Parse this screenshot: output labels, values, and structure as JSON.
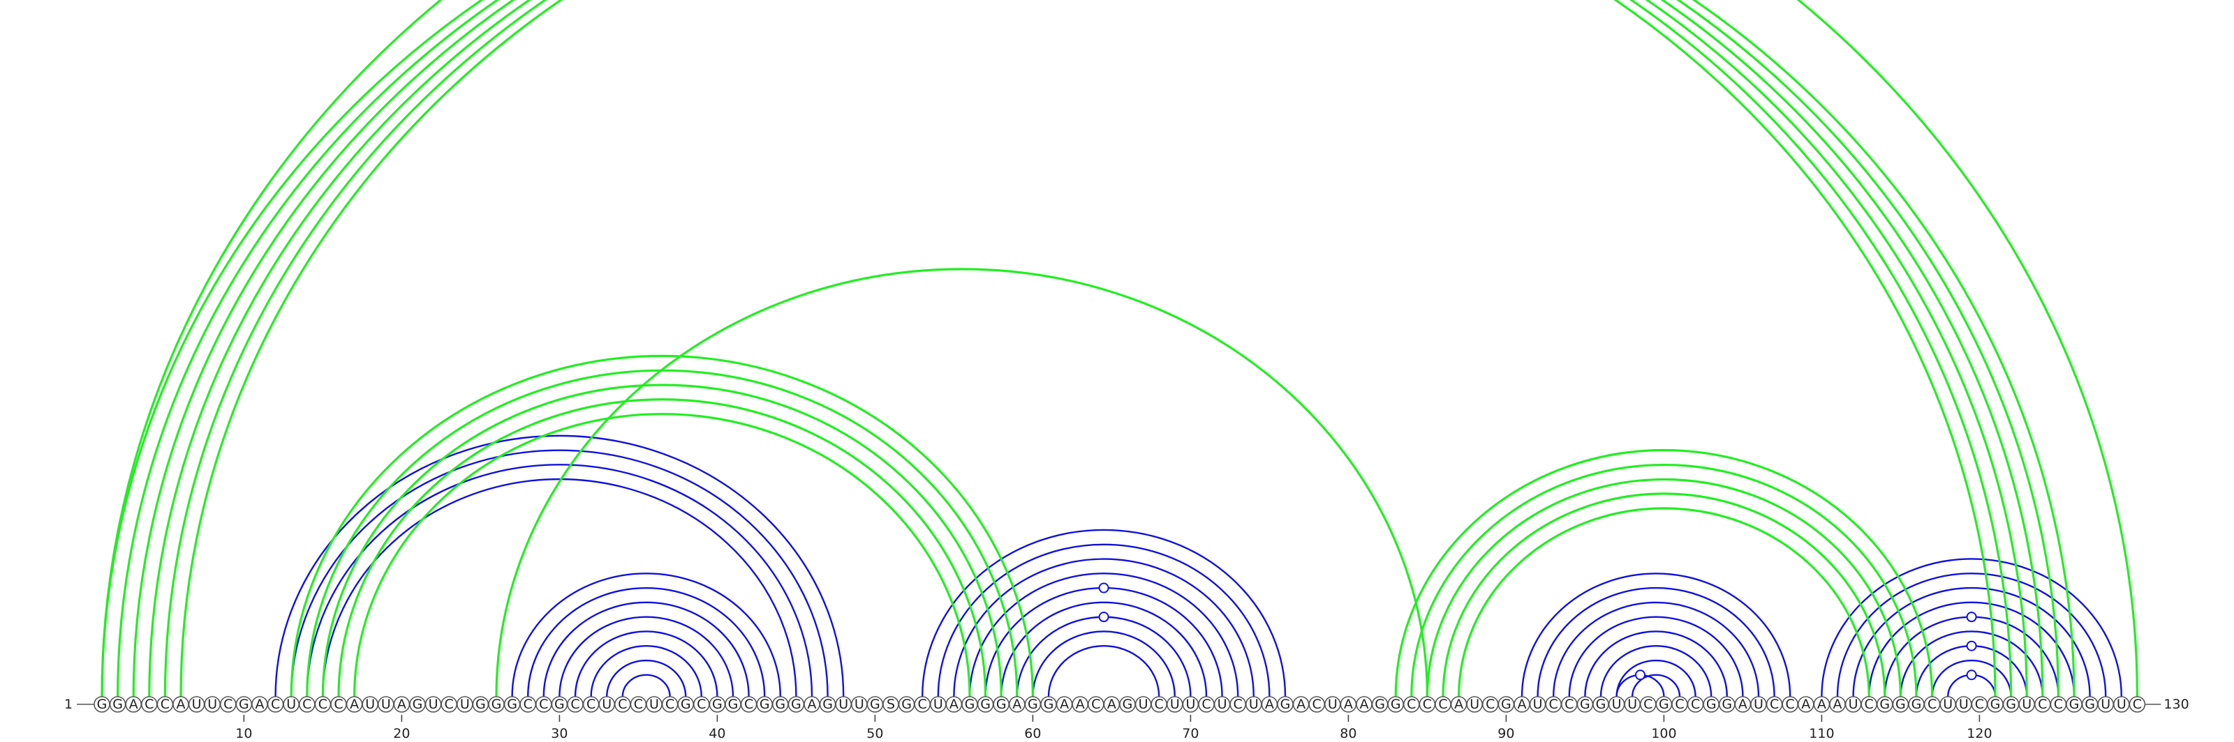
{
  "sequence": "GGACCAUUCGACUCCCAUUAGUCUGGGCCGCCUCCUCGCGGCGGGAGUUGSGCUAGGGAGGAACAGUCUUCUCUAGACUAAGGCCCAUCGAUCCGGUUCGCCGGAUCCAAAUCGGGCUUCGGUCCGGUUC",
  "start_label": "1",
  "end_label": "130",
  "ticks": [
    10,
    20,
    30,
    40,
    50,
    60,
    70,
    80,
    90,
    100,
    110,
    120
  ],
  "colors": {
    "blue": "#1111dd",
    "green": "#22ee22"
  },
  "arcs": [
    {
      "i": 12,
      "j": 48,
      "color": "blue"
    },
    {
      "i": 13,
      "j": 47,
      "color": "blue"
    },
    {
      "i": 14,
      "j": 46,
      "color": "blue"
    },
    {
      "i": 15,
      "j": 45,
      "color": "blue"
    },
    {
      "i": 27,
      "j": 44,
      "color": "blue"
    },
    {
      "i": 28,
      "j": 43,
      "color": "blue"
    },
    {
      "i": 29,
      "j": 42,
      "color": "blue"
    },
    {
      "i": 30,
      "j": 41,
      "color": "blue"
    },
    {
      "i": 31,
      "j": 40,
      "color": "blue"
    },
    {
      "i": 32,
      "j": 39,
      "color": "blue"
    },
    {
      "i": 33,
      "j": 38,
      "color": "blue"
    },
    {
      "i": 34,
      "j": 37,
      "color": "blue"
    },
    {
      "i": 53,
      "j": 76,
      "color": "blue"
    },
    {
      "i": 54,
      "j": 75,
      "color": "blue"
    },
    {
      "i": 55,
      "j": 74,
      "color": "blue"
    },
    {
      "i": 56,
      "j": 73,
      "color": "blue"
    },
    {
      "i": 57,
      "j": 72,
      "color": "blue",
      "noncanonical": true
    },
    {
      "i": 58,
      "j": 71,
      "color": "blue"
    },
    {
      "i": 59,
      "j": 70,
      "color": "blue",
      "noncanonical": true
    },
    {
      "i": 60,
      "j": 69,
      "color": "blue"
    },
    {
      "i": 61,
      "j": 68,
      "color": "blue"
    },
    {
      "i": 91,
      "j": 108,
      "color": "blue"
    },
    {
      "i": 92,
      "j": 107,
      "color": "blue"
    },
    {
      "i": 93,
      "j": 106,
      "color": "blue"
    },
    {
      "i": 94,
      "j": 105,
      "color": "blue"
    },
    {
      "i": 95,
      "j": 104,
      "color": "blue"
    },
    {
      "i": 96,
      "j": 103,
      "color": "blue"
    },
    {
      "i": 97,
      "j": 102,
      "color": "blue"
    },
    {
      "i": 98,
      "j": 101,
      "color": "blue"
    },
    {
      "i": 97,
      "j": 100,
      "color": "blue",
      "noncanonical": true
    },
    {
      "i": 110,
      "j": 129,
      "color": "blue"
    },
    {
      "i": 111,
      "j": 128,
      "color": "blue"
    },
    {
      "i": 112,
      "j": 127,
      "color": "blue"
    },
    {
      "i": 113,
      "j": 126,
      "color": "blue"
    },
    {
      "i": 114,
      "j": 125,
      "color": "blue",
      "noncanonical": true
    },
    {
      "i": 115,
      "j": 124,
      "color": "blue"
    },
    {
      "i": 116,
      "j": 123,
      "color": "blue",
      "noncanonical": true
    },
    {
      "i": 117,
      "j": 122,
      "color": "blue"
    },
    {
      "i": 118,
      "j": 121,
      "color": "blue",
      "noncanonical": true
    },
    {
      "i": 1,
      "j": 121,
      "color": "green"
    },
    {
      "i": 2,
      "j": 122,
      "color": "green"
    },
    {
      "i": 3,
      "j": 123,
      "color": "green"
    },
    {
      "i": 4,
      "j": 124,
      "color": "green"
    },
    {
      "i": 5,
      "j": 125,
      "color": "green"
    },
    {
      "i": 6,
      "j": 126,
      "color": "green"
    },
    {
      "i": 1,
      "j": 130,
      "color": "green",
      "noncanonical": true
    },
    {
      "i": 13,
      "j": 60,
      "color": "green"
    },
    {
      "i": 14,
      "j": 59,
      "color": "green"
    },
    {
      "i": 15,
      "j": 58,
      "color": "green"
    },
    {
      "i": 16,
      "j": 57,
      "color": "green"
    },
    {
      "i": 17,
      "j": 56,
      "color": "green"
    },
    {
      "i": 26,
      "j": 85,
      "color": "green"
    },
    {
      "i": 83,
      "j": 117,
      "color": "green"
    },
    {
      "i": 84,
      "j": 116,
      "color": "green"
    },
    {
      "i": 85,
      "j": 115,
      "color": "green"
    },
    {
      "i": 86,
      "j": 114,
      "color": "green"
    },
    {
      "i": 87,
      "j": 113,
      "color": "green"
    }
  ]
}
